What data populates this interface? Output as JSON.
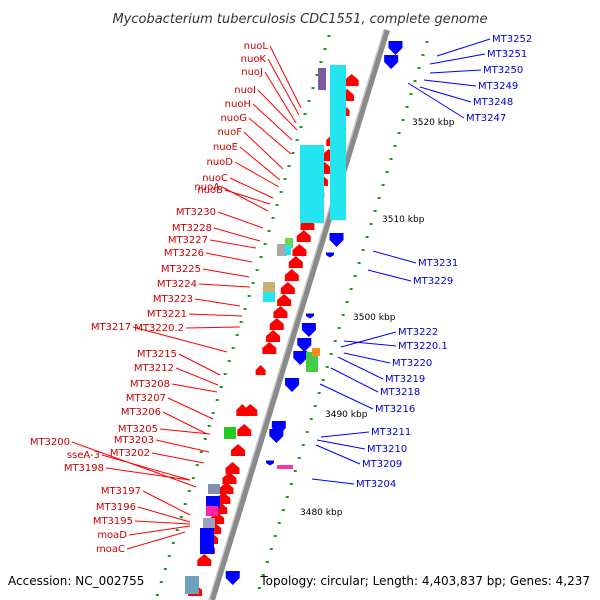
{
  "title": "Mycobacterium tuberculosis CDC1551, complete genome",
  "footer": {
    "accession": "Accession: NC_002755",
    "summary": "Topology: circular; Length: 4,403,837 bp; Genes: 4,237"
  },
  "scale_ticks": [
    "3520 kbp",
    "3510 kbp",
    "3500 kbp",
    "3490 kbp",
    "3480 kbp"
  ],
  "left_labels": [
    "nuoL",
    "nuoK",
    "nuoJ",
    "nuoI",
    "nuoH",
    "nuoG",
    "nuoF",
    "nuoE",
    "nuoD",
    "nuoC",
    "nuoB",
    "nuoA",
    "MT3230",
    "MT3228",
    "MT3227",
    "MT3226",
    "MT3225",
    "MT3224",
    "MT3223",
    "MT3221",
    "MT3217",
    "MT3220.2",
    "MT3215",
    "MT3212",
    "MT3208",
    "MT3207",
    "MT3206",
    "MT3205",
    "MT3203",
    "MT3200",
    "MT3202",
    "sseA-3",
    "MT3198",
    "MT3197",
    "MT3196",
    "MT3195",
    "moaD",
    "moaC"
  ],
  "right_labels": [
    "MT3252",
    "MT3251",
    "MT3250",
    "MT3249",
    "MT3248",
    "MT3247",
    "MT3231",
    "MT3229",
    "MT3222",
    "MT3220.1",
    "MT3220",
    "MT3219",
    "MT3218",
    "MT3216",
    "MT3211",
    "MT3210",
    "MT3209",
    "MT3204"
  ],
  "colors": {
    "forward_gene": "#ff0000",
    "reverse_gene": "#0000ff",
    "backbone": "#888888",
    "cds_cyan": "#22e5f0",
    "tick_green": "#1a9a1a"
  }
}
